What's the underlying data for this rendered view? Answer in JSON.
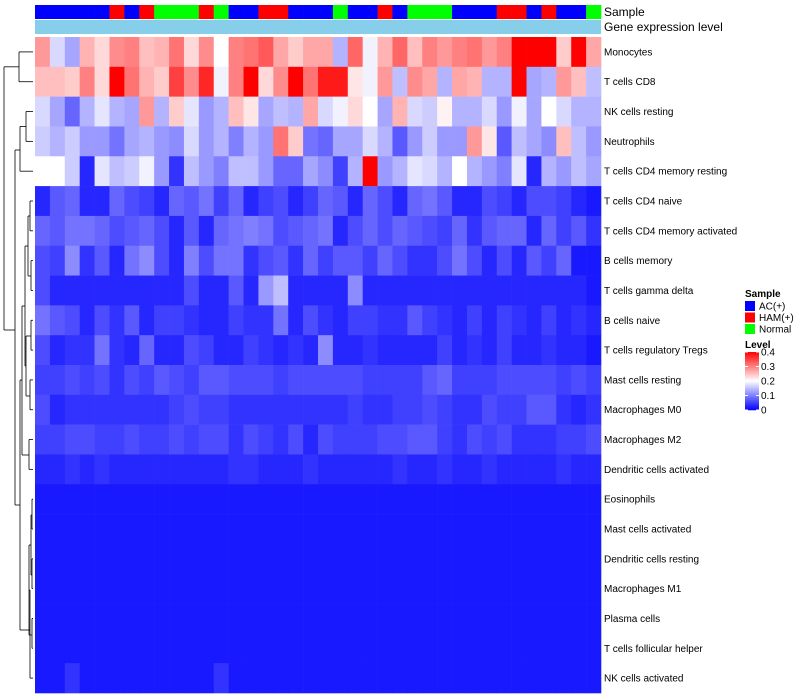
{
  "chart_data": {
    "type": "heatmap",
    "title": "",
    "annotation_tracks": [
      {
        "label": "Sample"
      },
      {
        "label": "Gene expression level"
      }
    ],
    "rows": [
      "Monocytes",
      "T cells CD8",
      "NK cells resting",
      "Neutrophils",
      "T cells CD4 memory resting",
      "T cells CD4 naive",
      "T cells CD4 memory activated",
      "B cells memory",
      "T cells gamma delta",
      "B cells naive",
      "T cells regulatory  Tregs",
      "Mast cells resting",
      "Macrophages M0",
      "Macrophages M2",
      "Dendritic cells activated",
      "Eosinophils",
      "Mast cells activated",
      "Dendritic cells resting",
      "Macrophages M1",
      "Plasma cells",
      "T cells follicular helper",
      "NK cells activated"
    ],
    "sample_groups": [
      "AC",
      "AC",
      "AC",
      "AC",
      "AC",
      "HAM",
      "AC",
      "HAM",
      "Normal",
      "Normal",
      "Normal",
      "HAM",
      "Normal",
      "AC",
      "AC",
      "HAM",
      "HAM",
      "AC",
      "AC",
      "AC",
      "Normal",
      "AC",
      "AC",
      "HAM",
      "AC",
      "Normal",
      "Normal",
      "Normal",
      "AC",
      "AC",
      "AC",
      "HAM",
      "HAM",
      "AC",
      "HAM",
      "AC",
      "AC",
      "Normal"
    ],
    "values": [
      [
        0.28,
        0.17,
        0.13,
        0.26,
        0.23,
        0.29,
        0.3,
        0.25,
        0.26,
        0.31,
        0.23,
        0.29,
        0.2,
        0.3,
        0.31,
        0.33,
        0.27,
        0.24,
        0.27,
        0.27,
        0.14,
        0.32,
        0.19,
        0.26,
        0.32,
        0.25,
        0.3,
        0.28,
        0.3,
        0.31,
        0.28,
        0.3,
        0.41,
        0.41,
        0.41,
        0.24,
        0.42,
        0.27
      ],
      [
        0.25,
        0.25,
        0.24,
        0.3,
        0.23,
        0.4,
        0.31,
        0.26,
        0.24,
        0.35,
        0.29,
        0.37,
        0.19,
        0.3,
        0.41,
        0.23,
        0.29,
        0.4,
        0.31,
        0.38,
        0.38,
        0.22,
        0.19,
        0.28,
        0.15,
        0.29,
        0.27,
        0.14,
        0.27,
        0.26,
        0.14,
        0.14,
        0.42,
        0.13,
        0.14,
        0.28,
        0.25,
        0.15
      ],
      [
        0.17,
        0.13,
        0.08,
        0.14,
        0.18,
        0.14,
        0.13,
        0.28,
        0.14,
        0.24,
        0.18,
        0.12,
        0.14,
        0.25,
        0.22,
        0.13,
        0.15,
        0.14,
        0.27,
        0.17,
        0.19,
        0.23,
        0.2,
        0.13,
        0.26,
        0.17,
        0.16,
        0.21,
        0.14,
        0.14,
        0.17,
        0.12,
        0.19,
        0.13,
        0.2,
        0.17,
        0.14,
        0.14
      ],
      [
        0.16,
        0.14,
        0.16,
        0.12,
        0.12,
        0.09,
        0.13,
        0.14,
        0.12,
        0.11,
        0.17,
        0.12,
        0.14,
        0.1,
        0.14,
        0.12,
        0.31,
        0.24,
        0.09,
        0.08,
        0.13,
        0.13,
        0.17,
        0.14,
        0.07,
        0.12,
        0.16,
        0.12,
        0.12,
        0.28,
        0.22,
        0.07,
        0.15,
        0.13,
        0.11,
        0.25,
        0.15,
        0.12
      ],
      [
        0.2,
        0.2,
        0.16,
        0.03,
        0.18,
        0.15,
        0.16,
        0.19,
        0.12,
        0.04,
        0.15,
        0.12,
        0.1,
        0.15,
        0.15,
        0.12,
        0.08,
        0.08,
        0.13,
        0.11,
        0.05,
        0.14,
        0.42,
        0.12,
        0.14,
        0.18,
        0.17,
        0.14,
        0.2,
        0.14,
        0.12,
        0.1,
        0.18,
        0.03,
        0.14,
        0.12,
        0.15,
        0.13
      ],
      [
        0.03,
        0.07,
        0.08,
        0.03,
        0.03,
        0.08,
        0.06,
        0.05,
        0.03,
        0.08,
        0.07,
        0.09,
        0.05,
        0.08,
        0.03,
        0.05,
        0.06,
        0.03,
        0.05,
        0.08,
        0.07,
        0.03,
        0.08,
        0.06,
        0.03,
        0.08,
        0.09,
        0.07,
        0.03,
        0.03,
        0.06,
        0.05,
        0.03,
        0.06,
        0.06,
        0.05,
        0.03,
        0.02
      ],
      [
        0.08,
        0.07,
        0.09,
        0.09,
        0.08,
        0.06,
        0.07,
        0.08,
        0.06,
        0.03,
        0.07,
        0.03,
        0.08,
        0.09,
        0.1,
        0.09,
        0.06,
        0.07,
        0.08,
        0.09,
        0.03,
        0.06,
        0.08,
        0.06,
        0.08,
        0.07,
        0.06,
        0.05,
        0.08,
        0.04,
        0.07,
        0.08,
        0.08,
        0.03,
        0.08,
        0.05,
        0.07,
        0.04
      ],
      [
        0.06,
        0.05,
        0.11,
        0.04,
        0.07,
        0.03,
        0.09,
        0.11,
        0.06,
        0.03,
        0.1,
        0.06,
        0.09,
        0.09,
        0.04,
        0.06,
        0.07,
        0.04,
        0.08,
        0.05,
        0.07,
        0.07,
        0.05,
        0.08,
        0.06,
        0.04,
        0.04,
        0.06,
        0.09,
        0.06,
        0.03,
        0.06,
        0.03,
        0.07,
        0.05,
        0.08,
        0.02,
        0.02
      ],
      [
        0.06,
        0.03,
        0.03,
        0.03,
        0.03,
        0.03,
        0.03,
        0.03,
        0.03,
        0.03,
        0.06,
        0.03,
        0.03,
        0.07,
        0.03,
        0.12,
        0.15,
        0.03,
        0.03,
        0.03,
        0.03,
        0.11,
        0.03,
        0.03,
        0.03,
        0.03,
        0.03,
        0.03,
        0.03,
        0.03,
        0.03,
        0.03,
        0.03,
        0.03,
        0.03,
        0.03,
        0.03,
        0.02
      ],
      [
        0.09,
        0.07,
        0.06,
        0.03,
        0.06,
        0.04,
        0.07,
        0.03,
        0.05,
        0.05,
        0.04,
        0.03,
        0.03,
        0.05,
        0.04,
        0.04,
        0.09,
        0.03,
        0.06,
        0.04,
        0.03,
        0.05,
        0.05,
        0.04,
        0.04,
        0.07,
        0.05,
        0.04,
        0.03,
        0.05,
        0.03,
        0.05,
        0.04,
        0.03,
        0.05,
        0.03,
        0.04,
        0.03
      ],
      [
        0.06,
        0.03,
        0.04,
        0.04,
        0.09,
        0.04,
        0.03,
        0.08,
        0.03,
        0.03,
        0.06,
        0.05,
        0.03,
        0.03,
        0.05,
        0.04,
        0.03,
        0.04,
        0.03,
        0.11,
        0.03,
        0.03,
        0.04,
        0.03,
        0.03,
        0.03,
        0.03,
        0.05,
        0.03,
        0.04,
        0.03,
        0.05,
        0.03,
        0.03,
        0.04,
        0.03,
        0.03,
        0.02
      ],
      [
        0.05,
        0.05,
        0.06,
        0.05,
        0.06,
        0.04,
        0.06,
        0.05,
        0.07,
        0.06,
        0.05,
        0.07,
        0.07,
        0.06,
        0.06,
        0.06,
        0.05,
        0.06,
        0.06,
        0.06,
        0.06,
        0.06,
        0.05,
        0.05,
        0.05,
        0.05,
        0.07,
        0.08,
        0.05,
        0.05,
        0.05,
        0.06,
        0.06,
        0.06,
        0.06,
        0.05,
        0.06,
        0.05
      ],
      [
        0.06,
        0.03,
        0.04,
        0.04,
        0.04,
        0.04,
        0.04,
        0.04,
        0.04,
        0.05,
        0.06,
        0.05,
        0.05,
        0.04,
        0.04,
        0.04,
        0.04,
        0.04,
        0.04,
        0.04,
        0.04,
        0.05,
        0.04,
        0.04,
        0.05,
        0.05,
        0.06,
        0.05,
        0.04,
        0.04,
        0.06,
        0.05,
        0.05,
        0.07,
        0.07,
        0.04,
        0.03,
        0.04
      ],
      [
        0.05,
        0.05,
        0.06,
        0.06,
        0.05,
        0.05,
        0.06,
        0.05,
        0.05,
        0.06,
        0.05,
        0.06,
        0.06,
        0.04,
        0.06,
        0.05,
        0.04,
        0.06,
        0.03,
        0.06,
        0.05,
        0.05,
        0.05,
        0.06,
        0.06,
        0.07,
        0.07,
        0.05,
        0.04,
        0.06,
        0.05,
        0.06,
        0.04,
        0.04,
        0.04,
        0.05,
        0.05,
        0.06
      ],
      [
        0.03,
        0.03,
        0.04,
        0.03,
        0.04,
        0.03,
        0.03,
        0.03,
        0.03,
        0.03,
        0.03,
        0.03,
        0.03,
        0.04,
        0.04,
        0.03,
        0.03,
        0.03,
        0.04,
        0.03,
        0.03,
        0.03,
        0.03,
        0.03,
        0.04,
        0.03,
        0.03,
        0.04,
        0.03,
        0.03,
        0.04,
        0.03,
        0.03,
        0.03,
        0.03,
        0.04,
        0.03,
        0.03
      ],
      [
        0.02,
        0.02,
        0.02,
        0.02,
        0.02,
        0.02,
        0.02,
        0.02,
        0.02,
        0.02,
        0.02,
        0.02,
        0.02,
        0.02,
        0.02,
        0.02,
        0.02,
        0.02,
        0.02,
        0.02,
        0.02,
        0.02,
        0.02,
        0.02,
        0.02,
        0.02,
        0.02,
        0.02,
        0.02,
        0.02,
        0.02,
        0.02,
        0.02,
        0.02,
        0.02,
        0.02,
        0.02,
        0.02
      ],
      [
        0.02,
        0.02,
        0.02,
        0.02,
        0.02,
        0.02,
        0.02,
        0.02,
        0.02,
        0.02,
        0.02,
        0.02,
        0.02,
        0.02,
        0.02,
        0.02,
        0.02,
        0.02,
        0.02,
        0.02,
        0.02,
        0.02,
        0.02,
        0.02,
        0.02,
        0.02,
        0.02,
        0.02,
        0.02,
        0.02,
        0.02,
        0.02,
        0.02,
        0.02,
        0.02,
        0.02,
        0.02,
        0.02
      ],
      [
        0.02,
        0.02,
        0.02,
        0.02,
        0.02,
        0.02,
        0.02,
        0.02,
        0.02,
        0.02,
        0.02,
        0.02,
        0.02,
        0.02,
        0.02,
        0.02,
        0.02,
        0.02,
        0.02,
        0.02,
        0.02,
        0.02,
        0.02,
        0.02,
        0.02,
        0.02,
        0.02,
        0.02,
        0.02,
        0.02,
        0.02,
        0.02,
        0.02,
        0.02,
        0.02,
        0.02,
        0.02,
        0.02
      ],
      [
        0.02,
        0.02,
        0.02,
        0.02,
        0.02,
        0.02,
        0.02,
        0.02,
        0.02,
        0.02,
        0.02,
        0.02,
        0.02,
        0.02,
        0.02,
        0.02,
        0.02,
        0.02,
        0.02,
        0.02,
        0.02,
        0.02,
        0.02,
        0.02,
        0.02,
        0.02,
        0.02,
        0.02,
        0.02,
        0.02,
        0.02,
        0.02,
        0.02,
        0.02,
        0.02,
        0.02,
        0.02,
        0.02
      ],
      [
        0.02,
        0.02,
        0.02,
        0.02,
        0.02,
        0.02,
        0.02,
        0.02,
        0.02,
        0.02,
        0.02,
        0.02,
        0.02,
        0.02,
        0.02,
        0.02,
        0.02,
        0.02,
        0.02,
        0.02,
        0.02,
        0.02,
        0.02,
        0.02,
        0.02,
        0.02,
        0.02,
        0.02,
        0.02,
        0.02,
        0.02,
        0.02,
        0.02,
        0.02,
        0.02,
        0.02,
        0.02,
        0.02
      ],
      [
        0.02,
        0.02,
        0.02,
        0.02,
        0.02,
        0.02,
        0.02,
        0.02,
        0.02,
        0.02,
        0.02,
        0.02,
        0.02,
        0.02,
        0.02,
        0.02,
        0.02,
        0.02,
        0.02,
        0.02,
        0.02,
        0.02,
        0.02,
        0.02,
        0.02,
        0.02,
        0.02,
        0.02,
        0.02,
        0.02,
        0.02,
        0.02,
        0.02,
        0.02,
        0.02,
        0.02,
        0.02,
        0.02
      ],
      [
        0.02,
        0.02,
        0.04,
        0.02,
        0.02,
        0.02,
        0.02,
        0.02,
        0.02,
        0.02,
        0.02,
        0.02,
        0.04,
        0.02,
        0.02,
        0.02,
        0.02,
        0.02,
        0.02,
        0.02,
        0.02,
        0.02,
        0.02,
        0.02,
        0.02,
        0.02,
        0.02,
        0.02,
        0.02,
        0.02,
        0.02,
        0.02,
        0.02,
        0.02,
        0.02,
        0.02,
        0.02,
        0.02
      ]
    ],
    "color_scale": {
      "min": 0,
      "max": 0.4,
      "low_color": "#0000ff",
      "mid_color": "#ffffff",
      "high_color": "#ff0000",
      "mid_value": 0.2
    },
    "legend": {
      "sample": {
        "title": "Sample",
        "entries": [
          {
            "key": "AC",
            "label": "AC(+)",
            "color": "#0000ff"
          },
          {
            "key": "HAM",
            "label": "HAM(+)",
            "color": "#ff0000"
          },
          {
            "key": "Normal",
            "label": "Normal",
            "color": "#00ff00"
          }
        ]
      },
      "level": {
        "title": "Level",
        "ticks": [
          {
            "value": 0.4,
            "label": "0.4"
          },
          {
            "value": 0.3,
            "label": "0.3"
          },
          {
            "value": 0.2,
            "label": "0.2"
          },
          {
            "value": 0.1,
            "label": "0.1"
          },
          {
            "value": 0,
            "label": "0"
          }
        ]
      }
    },
    "expression_track_color": "#87ceeb",
    "row_dendrogram": true
  }
}
